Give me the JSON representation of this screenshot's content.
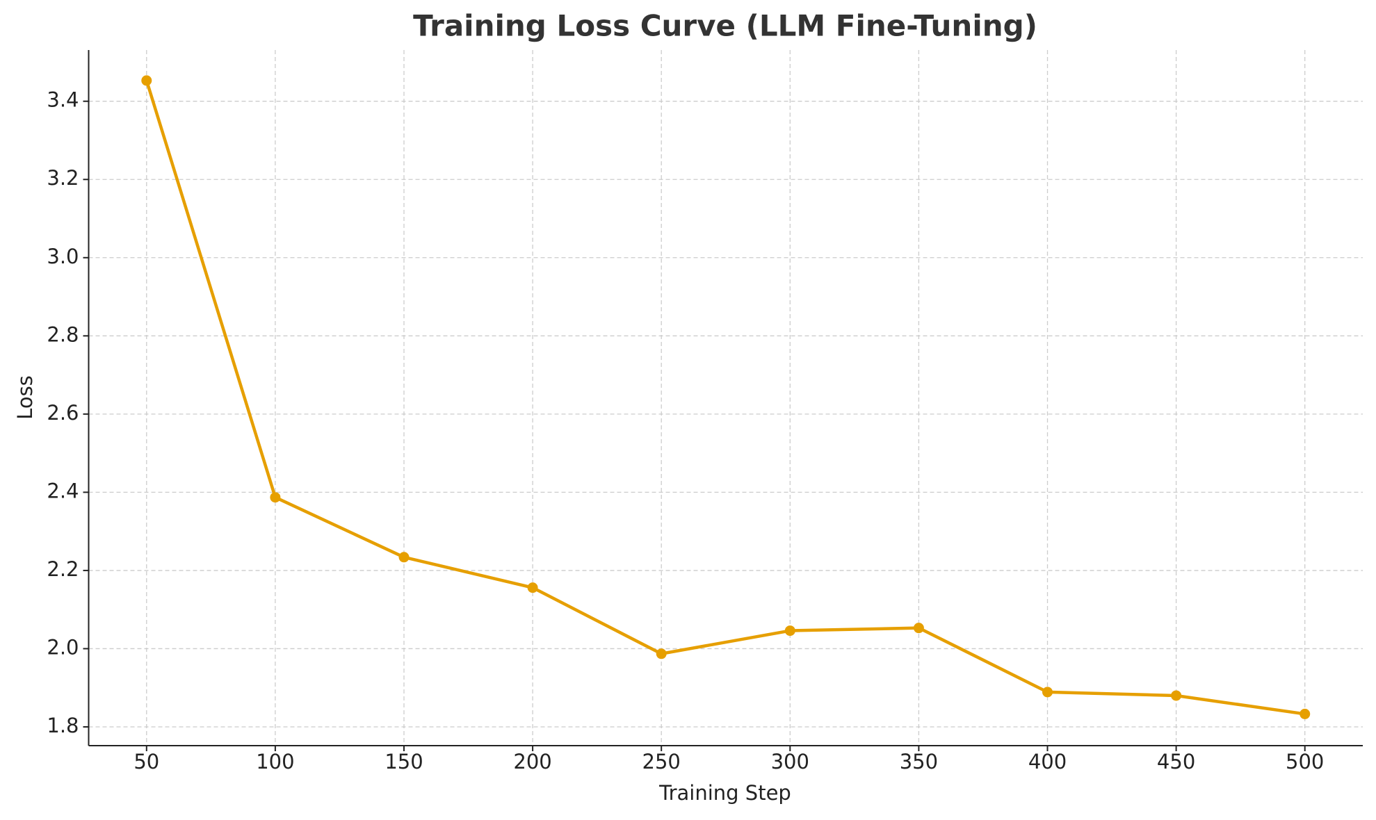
{
  "chart_data": {
    "type": "line",
    "title": "Training Loss Curve (LLM Fine-Tuning)",
    "x_label": "Training Step",
    "y_label": "Loss",
    "x": [
      50,
      100,
      150,
      200,
      250,
      300,
      350,
      400,
      450,
      500
    ],
    "series": [
      {
        "name": "Loss",
        "color": "#e69f00",
        "values": [
          3.453,
          2.387,
          2.234,
          2.156,
          1.987,
          2.046,
          2.053,
          1.889,
          1.88,
          1.833
        ]
      }
    ],
    "xlim": [
      27.5,
      522.5
    ],
    "xticks": [
      50,
      100,
      150,
      200,
      250,
      300,
      350,
      400,
      450,
      500
    ],
    "ylim": [
      1.752,
      3.531
    ],
    "yticks": [
      1.8,
      {
        "value": 2.0,
        "label": "2.0"
      },
      2.2,
      2.4,
      2.6,
      2.8,
      {
        "value": 3.0,
        "label": "3.0"
      },
      3.2,
      3.4
    ],
    "grid": true
  }
}
